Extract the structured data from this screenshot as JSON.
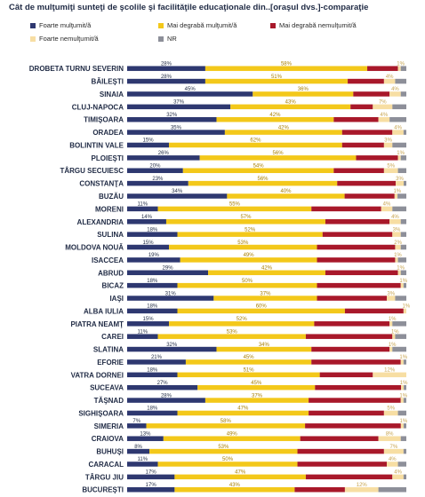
{
  "chart_data": {
    "type": "bar",
    "orientation": "horizontal",
    "stacked": true,
    "title": "Cât de mulţumiţi sunteţi de şcolile şi facilităţile educaţionale din..[oraşul dvs.]-comparaţie",
    "xlim": [
      0,
      100
    ],
    "legend_position": "top",
    "series": [
      {
        "name": "Foarte mulţumit/ă",
        "color": "#2e3870"
      },
      {
        "name": "Mai degrabă mulţumit/ă",
        "color": "#f3c81a"
      },
      {
        "name": "Mai degrabă nemulţumit/ă",
        "color": "#a8182a"
      },
      {
        "name": "Foarte nemulţumit/ă",
        "color": "#f7dea3"
      },
      {
        "name": "NR",
        "color": "#8d8f99"
      }
    ],
    "categories": [
      "DROBETA TURNU SEVERIN",
      "BĂILEŞTI",
      "SINAIA",
      "CLUJ-NAPOCA",
      "TIMIŞOARA",
      "ORADEA",
      "BOLINTIN VALE",
      "PLOIEŞTI",
      "TÂRGU SECUIESC",
      "CONSTANŢA",
      "BUZĂU",
      "MORENI",
      "ALEXANDRIA",
      "SULINA",
      "MOLDOVA NOUĂ",
      "ISACCEA",
      "ABRUD",
      "BICAZ",
      "IAŞI",
      "ALBA IULIA",
      "PIATRA NEAMŢ",
      "CAREI",
      "SLATINA",
      "EFORIE",
      "VATRA DORNEI",
      "SUCEAVA",
      "TĂŞNAD",
      "SIGHIŞOARA",
      "SIMERIA",
      "CRAIOVA",
      "BUHUŞI",
      "CARACAL",
      "TÂRGU JIU",
      "BUCUREŞTI"
    ],
    "values": [
      [
        28,
        58,
        11,
        1,
        2
      ],
      [
        28,
        51,
        13,
        4,
        4
      ],
      [
        45,
        36,
        13,
        4,
        2
      ],
      [
        37,
        43,
        8,
        7,
        5
      ],
      [
        32,
        42,
        16,
        4,
        6
      ],
      [
        35,
        42,
        18,
        4,
        1
      ],
      [
        15,
        62,
        15,
        3,
        5
      ],
      [
        26,
        56,
        15,
        1,
        2
      ],
      [
        20,
        54,
        18,
        5,
        3
      ],
      [
        23,
        56,
        22,
        3,
        1
      ],
      [
        34,
        40,
        17,
        1,
        3
      ],
      [
        11,
        55,
        25,
        4,
        5
      ],
      [
        14,
        57,
        23,
        4,
        2
      ],
      [
        18,
        52,
        25,
        3,
        2
      ],
      [
        15,
        53,
        28,
        2,
        2
      ],
      [
        19,
        49,
        28,
        1,
        3
      ],
      [
        29,
        42,
        26,
        1,
        2
      ],
      [
        18,
        50,
        30,
        1,
        1
      ],
      [
        31,
        37,
        25,
        3,
        4
      ],
      [
        18,
        60,
        21,
        1,
        0
      ],
      [
        15,
        52,
        27,
        1,
        5
      ],
      [
        11,
        53,
        31,
        1,
        4
      ],
      [
        32,
        34,
        28,
        1,
        5
      ],
      [
        21,
        45,
        32,
        1,
        1
      ],
      [
        18,
        51,
        19,
        12,
        0
      ],
      [
        27,
        45,
        33,
        1,
        1
      ],
      [
        28,
        37,
        33,
        1,
        1
      ],
      [
        18,
        47,
        27,
        5,
        3
      ],
      [
        7,
        58,
        35,
        1,
        1
      ],
      [
        13,
        49,
        28,
        8,
        2
      ],
      [
        8,
        53,
        31,
        7,
        1
      ],
      [
        11,
        50,
        32,
        4,
        3
      ],
      [
        17,
        47,
        31,
        4,
        1
      ],
      [
        17,
        43,
        18,
        12,
        10
      ]
    ]
  }
}
